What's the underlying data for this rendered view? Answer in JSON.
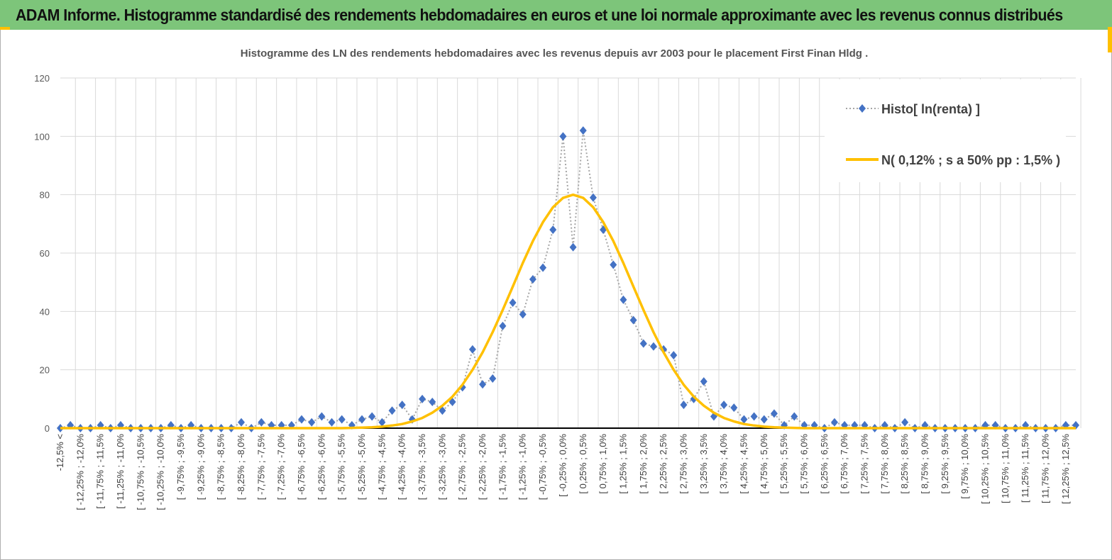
{
  "page_title": "ADAM Informe. Histogramme standardisé des rendements hebdomadaires en euros et une loi normale approximante avec les revenus connus distribués",
  "chart_data": {
    "type": "line",
    "title": "Histogramme des LN des rendements hebdomadaires avec les revenus depuis avr 2003 pour le placement First  Finan Hldg .",
    "categories": [
      "-12,5% <",
      null,
      "[ -12,25% ; -12,0%",
      null,
      "[ -11,75% ; -11,5%",
      null,
      "[ -11,25% ; -11,0%",
      null,
      "[ -10,75% ; -10,5%",
      null,
      "[ -10,25% ; -10,0%",
      null,
      "[ -9,75% ; -9,5%",
      null,
      "[ -9,25% ; -9,0%",
      null,
      "[ -8,75% ; -8,5%",
      null,
      "[ -8,25% ; -8,0%",
      null,
      "[ -7,75% ; -7,5%",
      null,
      "[ -7,25% ; -7,0%",
      null,
      "[ -6,75% ; -6,5%",
      null,
      "[ -6,25% ; -6,0%",
      null,
      "[ -5,75% ; -5,5%",
      null,
      "[ -5,25% ; -5,0%",
      null,
      "[ -4,75% ; -4,5%",
      null,
      "[ -4,25% ; -4,0%",
      null,
      "[ -3,75% ; -3,5%",
      null,
      "[ -3,25% ; -3,0%",
      null,
      "[ -2,75% ; -2,5%",
      null,
      "[ -2,25% ; -2,0%",
      null,
      "[ -1,75% ; -1,5%",
      null,
      "[ -1,25% ; -1,0%",
      null,
      "[ -0,75% ; -0,5%",
      null,
      "[ -0,25% ; 0,0%",
      null,
      "[ 0,25% ; 0,5%",
      null,
      "[ 0,75% ; 1,0%",
      null,
      "[ 1,25% ; 1,5%",
      null,
      "[ 1,75% ; 2,0%",
      null,
      "[ 2,25% ; 2,5%",
      null,
      "[ 2,75% ; 3,0%",
      null,
      "[ 3,25% ; 3,5%",
      null,
      "[ 3,75% ; 4,0%",
      null,
      "[ 4,25% ; 4,5%",
      null,
      "[ 4,75% ; 5,0%",
      null,
      "[ 5,25% ; 5,5%",
      null,
      "[ 5,75% ; 6,0%",
      null,
      "[ 6,25% ; 6,5%",
      null,
      "[ 6,75% ; 7,0%",
      null,
      "[ 7,25% ; 7,5%",
      null,
      "[ 7,75% ; 8,0%",
      null,
      "[ 8,25% ; 8,5%",
      null,
      "[ 8,75% ; 9,0%",
      null,
      "[ 9,25% ; 9,5%",
      null,
      "[ 9,75% ; 10,0%",
      null,
      "[ 10,25% ; 10,5%",
      null,
      "[ 10,75% ; 11,0%",
      null,
      "[ 11,25% ; 11,5%",
      null,
      "[ 11,75% ; 12,0%",
      null,
      "[ 12,25% ; 12,5%",
      null
    ],
    "series": [
      {
        "name": "Histo[ ln(renta) ]",
        "color": "#4472c4",
        "line_color": "#a5a5a5",
        "values": [
          0,
          1,
          0,
          0,
          1,
          0,
          1,
          0,
          0,
          0,
          0,
          1,
          0,
          1,
          0,
          0,
          0,
          0,
          2,
          0,
          2,
          1,
          1,
          1,
          3,
          2,
          4,
          2,
          3,
          1,
          3,
          4,
          2,
          6,
          8,
          3,
          10,
          9,
          6,
          9,
          14,
          27,
          15,
          17,
          35,
          43,
          39,
          51,
          55,
          68,
          100,
          62,
          102,
          79,
          68,
          56,
          44,
          37,
          29,
          28,
          27,
          25,
          8,
          10,
          16,
          4,
          8,
          7,
          3,
          4,
          3,
          5,
          1,
          4,
          1,
          1,
          0,
          2,
          1,
          1,
          1,
          0,
          1,
          0,
          2,
          0,
          1,
          0,
          0,
          0,
          0,
          0,
          1,
          1,
          0,
          0,
          1,
          0,
          0,
          0,
          1,
          1
        ]
      },
      {
        "name": "N( 0,12% ; s a 50% pp : 1,5% )",
        "color": "#ffc000",
        "values": [
          0,
          0,
          0,
          0,
          0,
          0,
          0,
          0,
          0,
          0,
          0,
          0,
          0,
          0,
          0,
          0,
          0,
          0,
          0,
          0,
          0,
          0,
          0,
          0,
          0,
          0,
          0,
          0,
          0,
          0.1,
          0.2,
          0.3,
          0.5,
          0.9,
          1.4,
          2.3,
          3.5,
          5.3,
          7.7,
          10.8,
          14.9,
          20.0,
          26.0,
          32.9,
          40.5,
          48.5,
          56.6,
          64.1,
          70.6,
          75.7,
          78.9,
          80,
          78.9,
          75.7,
          70.6,
          64.1,
          56.6,
          48.5,
          40.5,
          32.9,
          26.0,
          20.0,
          14.9,
          10.8,
          7.7,
          5.3,
          3.5,
          2.3,
          1.4,
          0.9,
          0.5,
          0.3,
          0.2,
          0.1,
          0,
          0,
          0,
          0,
          0,
          0,
          0,
          0,
          0,
          0,
          0,
          0,
          0,
          0,
          0,
          0,
          0,
          0,
          0,
          0,
          0,
          0,
          0,
          0,
          0,
          0,
          0,
          0
        ]
      }
    ],
    "ylim": [
      0,
      120
    ],
    "yticks": [
      0,
      20,
      40,
      60,
      80,
      100,
      120
    ],
    "grid": true,
    "legend": "top-right"
  }
}
